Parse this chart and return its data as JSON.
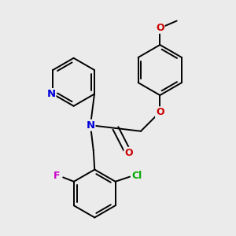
{
  "background_color": "#ebebeb",
  "bond_color": "#000000",
  "bond_width": 1.4,
  "atom_labels": {
    "N": {
      "color": "#0000dd"
    },
    "O": {
      "color": "#cc0000"
    },
    "Cl": {
      "color": "#00aa00"
    },
    "F": {
      "color": "#cc00cc"
    }
  },
  "figsize": [
    3.0,
    3.0
  ],
  "dpi": 100
}
